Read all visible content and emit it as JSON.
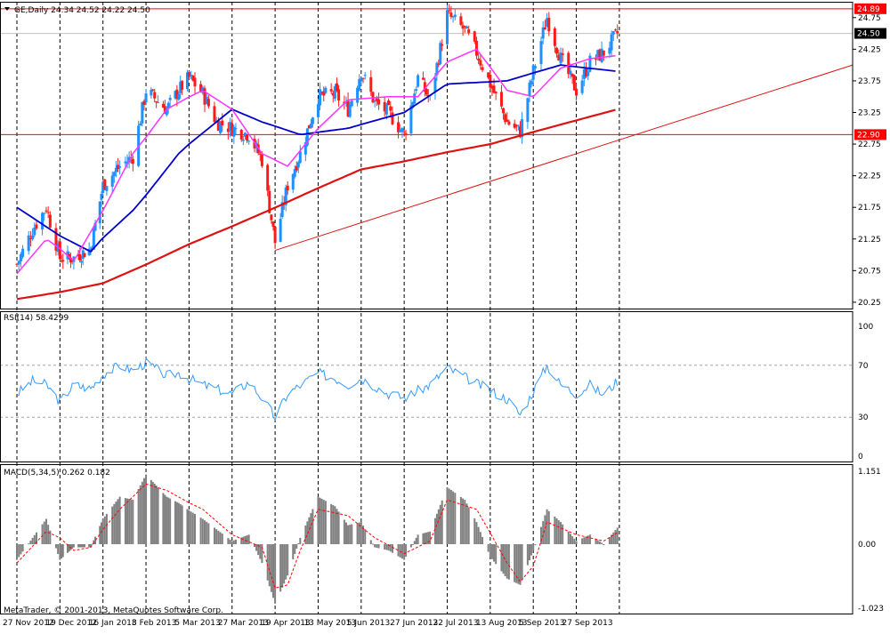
{
  "header": {
    "symbol_line": "GE,Daily  24.34 24.52 24.22 24.50",
    "rsi_label": "RSI(14) 58.4299",
    "macd_label": "MACD(5,34,5) 0.262 0.182",
    "copyright": "MetaTrader, © 2001-2013, MetaQuotes Software Corp."
  },
  "colors": {
    "bull": "#1e90ff",
    "bear": "#ff1a1a",
    "ma_fast": "#ff33ff",
    "ma_mid": "#0000cc",
    "ma_slow": "#dd1111",
    "rsi": "#3399ff",
    "hist": "#808080",
    "signal": "#ff0000",
    "hline": "#ff0000",
    "grid": "#000000"
  },
  "price_tags": [
    {
      "label": "24.89",
      "value": 24.89,
      "bg": "#ff0000"
    },
    {
      "label": "24.50",
      "value": 24.5,
      "bg": "#000000"
    },
    {
      "label": "22.90",
      "value": 22.9,
      "bg": "#ff0000"
    }
  ],
  "chart_data": [
    {
      "type": "candlestick",
      "panel": "price",
      "series": [
        {
          "name": "GE"
        }
      ],
      "y_ticks": [
        "24.75",
        "24.25",
        "23.75",
        "23.25",
        "22.75",
        "22.25",
        "21.75",
        "21.25",
        "20.75",
        "20.25"
      ],
      "ylim": [
        20.15,
        25.0
      ],
      "horizontal_lines": [
        24.89,
        24.5,
        22.9
      ],
      "trendline": {
        "from": {
          "date": "19 Apr 2013",
          "value": 21.07
        },
        "to": {
          "date": "right edge",
          "value": 24.0
        }
      },
      "x_labels": [
        "27 Nov 2012",
        "19 Dec 2012",
        "16 Jan 2013",
        "8 Feb 2013",
        "5 Mar 2013",
        "27 Mar 2013",
        "19 Apr 2013",
        "13 May 2013",
        "5 Jun 2013",
        "27 Jun 2013",
        "22 Jul 2013",
        "13 Aug 2013",
        "5 Sep 2013",
        "27 Sep 2013"
      ],
      "close_path": [
        {
          "date": "27 Nov 2012",
          "close": 20.85
        },
        {
          "date": "5 Dec 2012",
          "close": 21.4
        },
        {
          "date": "12 Dec 2012",
          "close": 21.75
        },
        {
          "date": "19 Dec 2012",
          "close": 20.95
        },
        {
          "date": "28 Dec 2012",
          "close": 20.95
        },
        {
          "date": "8 Jan 2013",
          "close": 21.1
        },
        {
          "date": "16 Jan 2013",
          "close": 22.1
        },
        {
          "date": "25 Jan 2013",
          "close": 22.4
        },
        {
          "date": "1 Feb 2013",
          "close": 22.55
        },
        {
          "date": "8 Feb 2013",
          "close": 23.6
        },
        {
          "date": "20 Feb 2013",
          "close": 23.3
        },
        {
          "date": "27 Feb 2013",
          "close": 23.6
        },
        {
          "date": "5 Mar 2013",
          "close": 23.8
        },
        {
          "date": "12 Mar 2013",
          "close": 23.55
        },
        {
          "date": "19 Mar 2013",
          "close": 23.1
        },
        {
          "date": "27 Mar 2013",
          "close": 23.0
        },
        {
          "date": "5 Apr 2013",
          "close": 22.9
        },
        {
          "date": "12 Apr 2013",
          "close": 22.5
        },
        {
          "date": "19 Apr 2013",
          "close": 21.2
        },
        {
          "date": "26 Apr 2013",
          "close": 22.1
        },
        {
          "date": "3 May 2013",
          "close": 22.6
        },
        {
          "date": "13 May 2013",
          "close": 23.5
        },
        {
          "date": "22 May 2013",
          "close": 23.55
        },
        {
          "date": "29 May 2013",
          "close": 23.3
        },
        {
          "date": "5 Jun 2013",
          "close": 23.9
        },
        {
          "date": "12 Jun 2013",
          "close": 23.4
        },
        {
          "date": "19 Jun 2013",
          "close": 23.25
        },
        {
          "date": "27 Jun 2013",
          "close": 22.9
        },
        {
          "date": "5 Jul 2013",
          "close": 23.8
        },
        {
          "date": "12 Jul 2013",
          "close": 23.45
        },
        {
          "date": "22 Jul 2013",
          "close": 24.8
        },
        {
          "date": "31 Jul 2013",
          "close": 24.55
        },
        {
          "date": "6 Aug 2013",
          "close": 24.2
        },
        {
          "date": "13 Aug 2013",
          "close": 23.7
        },
        {
          "date": "22 Aug 2013",
          "close": 23.1
        },
        {
          "date": "29 Aug 2013",
          "close": 22.95
        },
        {
          "date": "5 Sep 2013",
          "close": 23.9
        },
        {
          "date": "12 Sep 2013",
          "close": 24.75
        },
        {
          "date": "19 Sep 2013",
          "close": 24.1
        },
        {
          "date": "27 Sep 2013",
          "close": 23.6
        },
        {
          "date": "4 Oct 2013",
          "close": 24.05
        },
        {
          "date": "11 Oct 2013",
          "close": 24.2
        },
        {
          "date": "18 Oct 2013",
          "close": 24.5
        }
      ],
      "ma_fast": [
        {
          "date": "27 Nov 2012",
          "value": 20.7
        },
        {
          "date": "12 Dec 2012",
          "value": 21.25
        },
        {
          "date": "28 Dec 2012",
          "value": 20.9
        },
        {
          "date": "16 Jan 2013",
          "value": 21.7
        },
        {
          "date": "1 Feb 2013",
          "value": 22.6
        },
        {
          "date": "20 Feb 2013",
          "value": 23.3
        },
        {
          "date": "12 Mar 2013",
          "value": 23.6
        },
        {
          "date": "27 Mar 2013",
          "value": 23.3
        },
        {
          "date": "12 Apr 2013",
          "value": 22.6
        },
        {
          "date": "26 Apr 2013",
          "value": 22.4
        },
        {
          "date": "13 May 2013",
          "value": 23.0
        },
        {
          "date": "29 May 2013",
          "value": 23.45
        },
        {
          "date": "19 Jun 2013",
          "value": 23.5
        },
        {
          "date": "5 Jul 2013",
          "value": 23.5
        },
        {
          "date": "22 Jul 2013",
          "value": 24.05
        },
        {
          "date": "6 Aug 2013",
          "value": 24.25
        },
        {
          "date": "22 Aug 2013",
          "value": 23.6
        },
        {
          "date": "5 Sep 2013",
          "value": 23.5
        },
        {
          "date": "19 Sep 2013",
          "value": 23.95
        },
        {
          "date": "4 Oct 2013",
          "value": 24.1
        },
        {
          "date": "18 Oct 2013",
          "value": 24.15
        }
      ],
      "ma_mid": [
        {
          "date": "27 Nov 2012",
          "value": 21.75
        },
        {
          "date": "19 Dec 2012",
          "value": 21.3
        },
        {
          "date": "8 Jan 2013",
          "value": 21.05
        },
        {
          "date": "1 Feb 2013",
          "value": 21.7
        },
        {
          "date": "27 Feb 2013",
          "value": 22.6
        },
        {
          "date": "27 Mar 2013",
          "value": 23.3
        },
        {
          "date": "12 Apr 2013",
          "value": 23.1
        },
        {
          "date": "3 May 2013",
          "value": 22.9
        },
        {
          "date": "29 May 2013",
          "value": 23.0
        },
        {
          "date": "27 Jun 2013",
          "value": 23.25
        },
        {
          "date": "22 Jul 2013",
          "value": 23.7
        },
        {
          "date": "22 Aug 2013",
          "value": 23.75
        },
        {
          "date": "19 Sep 2013",
          "value": 24.0
        },
        {
          "date": "18 Oct 2013",
          "value": 23.9
        }
      ],
      "ma_slow": [
        {
          "date": "27 Nov 2012",
          "value": 20.3
        },
        {
          "date": "16 Jan 2013",
          "value": 20.55
        },
        {
          "date": "27 Mar 2013",
          "value": 21.45
        },
        {
          "date": "5 Jun 2013",
          "value": 22.35
        },
        {
          "date": "13 Aug 2013",
          "value": 22.75
        },
        {
          "date": "18 Oct 2013",
          "value": 23.3
        }
      ]
    },
    {
      "type": "line",
      "panel": "rsi",
      "title": "RSI(14) 58.4299",
      "y_ticks": [
        "100",
        "70",
        "30",
        "0"
      ],
      "ylim": [
        0,
        100
      ],
      "levels": [
        70,
        30
      ],
      "series": [
        {
          "name": "RSI(14)",
          "points": [
            {
              "date": "27 Nov 2012",
              "value": 48
            },
            {
              "date": "5 Dec 2012",
              "value": 58
            },
            {
              "date": "12 Dec 2012",
              "value": 55
            },
            {
              "date": "19 Dec 2012",
              "value": 42
            },
            {
              "date": "28 Dec 2012",
              "value": 55
            },
            {
              "date": "8 Jan 2013",
              "value": 52
            },
            {
              "date": "16 Jan 2013",
              "value": 63
            },
            {
              "date": "25 Jan 2013",
              "value": 70
            },
            {
              "date": "1 Feb 2013",
              "value": 66
            },
            {
              "date": "8 Feb 2013",
              "value": 72
            },
            {
              "date": "20 Feb 2013",
              "value": 62
            },
            {
              "date": "27 Feb 2013",
              "value": 64
            },
            {
              "date": "12 Mar 2013",
              "value": 55
            },
            {
              "date": "27 Mar 2013",
              "value": 48
            },
            {
              "date": "5 Apr 2013",
              "value": 57
            },
            {
              "date": "12 Apr 2013",
              "value": 45
            },
            {
              "date": "19 Apr 2013",
              "value": 30
            },
            {
              "date": "26 Apr 2013",
              "value": 48
            },
            {
              "date": "13 May 2013",
              "value": 64
            },
            {
              "date": "22 May 2013",
              "value": 60
            },
            {
              "date": "29 May 2013",
              "value": 55
            },
            {
              "date": "5 Jun 2013",
              "value": 60
            },
            {
              "date": "19 Jun 2013",
              "value": 48
            },
            {
              "date": "27 Jun 2013",
              "value": 45
            },
            {
              "date": "12 Jul 2013",
              "value": 55
            },
            {
              "date": "22 Jul 2013",
              "value": 68
            },
            {
              "date": "6 Aug 2013",
              "value": 56
            },
            {
              "date": "22 Aug 2013",
              "value": 44
            },
            {
              "date": "29 Aug 2013",
              "value": 32
            },
            {
              "date": "5 Sep 2013",
              "value": 50
            },
            {
              "date": "12 Sep 2013",
              "value": 70
            },
            {
              "date": "19 Sep 2013",
              "value": 55
            },
            {
              "date": "27 Sep 2013",
              "value": 48
            },
            {
              "date": "4 Oct 2013",
              "value": 55
            },
            {
              "date": "11 Oct 2013",
              "value": 47
            },
            {
              "date": "18 Oct 2013",
              "value": 58
            }
          ]
        }
      ]
    },
    {
      "type": "bar",
      "panel": "macd",
      "title": "MACD(5,34,5) 0.262 0.182",
      "y_ticks": [
        "1.151",
        "0.00",
        "-1.023"
      ],
      "ylim": [
        -1.1,
        1.25
      ],
      "series": [
        {
          "name": "MACD(5,34,5)",
          "points": [
            {
              "date": "27 Nov 2012",
              "value": -0.25
            },
            {
              "date": "5 Dec 2012",
              "value": 0.1
            },
            {
              "date": "12 Dec 2012",
              "value": 0.4
            },
            {
              "date": "19 Dec 2012",
              "value": -0.25
            },
            {
              "date": "28 Dec 2012",
              "value": -0.05
            },
            {
              "date": "8 Jan 2013",
              "value": -0.05
            },
            {
              "date": "16 Jan 2013",
              "value": 0.4
            },
            {
              "date": "25 Jan 2013",
              "value": 0.75
            },
            {
              "date": "1 Feb 2013",
              "value": 0.7
            },
            {
              "date": "8 Feb 2013",
              "value": 1.1
            },
            {
              "date": "20 Feb 2013",
              "value": 0.75
            },
            {
              "date": "27 Feb 2013",
              "value": 0.65
            },
            {
              "date": "12 Mar 2013",
              "value": 0.4
            },
            {
              "date": "27 Mar 2013",
              "value": 0.05
            },
            {
              "date": "5 Apr 2013",
              "value": 0.15
            },
            {
              "date": "12 Apr 2013",
              "value": -0.3
            },
            {
              "date": "19 Apr 2013",
              "value": -0.95
            },
            {
              "date": "26 Apr 2013",
              "value": -0.5
            },
            {
              "date": "3 May 2013",
              "value": 0.1
            },
            {
              "date": "13 May 2013",
              "value": 0.75
            },
            {
              "date": "22 May 2013",
              "value": 0.6
            },
            {
              "date": "29 May 2013",
              "value": 0.3
            },
            {
              "date": "5 Jun 2013",
              "value": 0.35
            },
            {
              "date": "12 Jun 2013",
              "value": -0.05
            },
            {
              "date": "19 Jun 2013",
              "value": -0.1
            },
            {
              "date": "27 Jun 2013",
              "value": -0.25
            },
            {
              "date": "5 Jul 2013",
              "value": 0.15
            },
            {
              "date": "12 Jul 2013",
              "value": 0.2
            },
            {
              "date": "22 Jul 2013",
              "value": 0.9
            },
            {
              "date": "31 Jul 2013",
              "value": 0.7
            },
            {
              "date": "6 Aug 2013",
              "value": 0.35
            },
            {
              "date": "13 Aug 2013",
              "value": -0.2
            },
            {
              "date": "22 Aug 2013",
              "value": -0.55
            },
            {
              "date": "29 Aug 2013",
              "value": -0.65
            },
            {
              "date": "5 Sep 2013",
              "value": -0.1
            },
            {
              "date": "12 Sep 2013",
              "value": 0.55
            },
            {
              "date": "19 Sep 2013",
              "value": 0.35
            },
            {
              "date": "27 Sep 2013",
              "value": 0.05
            },
            {
              "date": "4 Oct 2013",
              "value": 0.15
            },
            {
              "date": "11 Oct 2013",
              "value": 0.0
            },
            {
              "date": "18 Oct 2013",
              "value": 0.26
            }
          ]
        },
        {
          "name": "signal",
          "points": [
            {
              "date": "27 Nov 2012",
              "value": -0.3
            },
            {
              "date": "12 Dec 2012",
              "value": 0.2
            },
            {
              "date": "19 Dec 2012",
              "value": 0.1
            },
            {
              "date": "28 Dec 2012",
              "value": -0.1
            },
            {
              "date": "8 Jan 2013",
              "value": -0.05
            },
            {
              "date": "25 Jan 2013",
              "value": 0.55
            },
            {
              "date": "8 Feb 2013",
              "value": 0.95
            },
            {
              "date": "20 Feb 2013",
              "value": 0.85
            },
            {
              "date": "12 Mar 2013",
              "value": 0.55
            },
            {
              "date": "27 Mar 2013",
              "value": 0.15
            },
            {
              "date": "12 Apr 2013",
              "value": -0.05
            },
            {
              "date": "19 Apr 2013",
              "value": -0.7
            },
            {
              "date": "26 Apr 2013",
              "value": -0.65
            },
            {
              "date": "3 May 2013",
              "value": -0.1
            },
            {
              "date": "13 May 2013",
              "value": 0.55
            },
            {
              "date": "29 May 2013",
              "value": 0.45
            },
            {
              "date": "12 Jun 2013",
              "value": 0.1
            },
            {
              "date": "27 Jun 2013",
              "value": -0.15
            },
            {
              "date": "12 Jul 2013",
              "value": 0.05
            },
            {
              "date": "22 Jul 2013",
              "value": 0.7
            },
            {
              "date": "6 Aug 2013",
              "value": 0.55
            },
            {
              "date": "22 Aug 2013",
              "value": -0.3
            },
            {
              "date": "29 Aug 2013",
              "value": -0.6
            },
            {
              "date": "5 Sep 2013",
              "value": -0.35
            },
            {
              "date": "12 Sep 2013",
              "value": 0.35
            },
            {
              "date": "27 Sep 2013",
              "value": 0.15
            },
            {
              "date": "11 Oct 2013",
              "value": 0.05
            },
            {
              "date": "18 Oct 2013",
              "value": 0.18
            }
          ]
        }
      ]
    }
  ]
}
